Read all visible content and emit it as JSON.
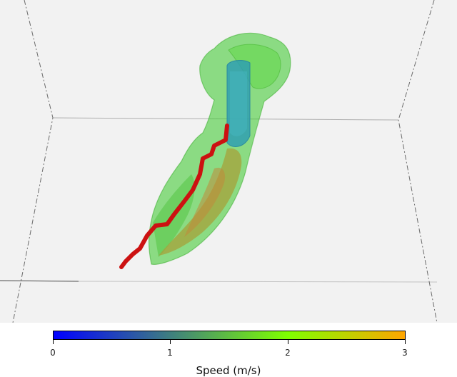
{
  "colorbar": {
    "title": "Speed (m/s)",
    "min": 0,
    "max": 3,
    "ticks": [
      "0",
      "1",
      "2",
      "3"
    ],
    "colors": [
      "#0000ff",
      "#3f7f7f",
      "#7fff00",
      "#ffa500"
    ]
  },
  "colors": {
    "background": "#f2f2f2",
    "box_edges": "#6b6b6b",
    "inner_core": "#2e9fb0",
    "outer_shell": "#3ecf2a",
    "fast_streak": "#b0a030",
    "trajectory": "#cc1111"
  }
}
